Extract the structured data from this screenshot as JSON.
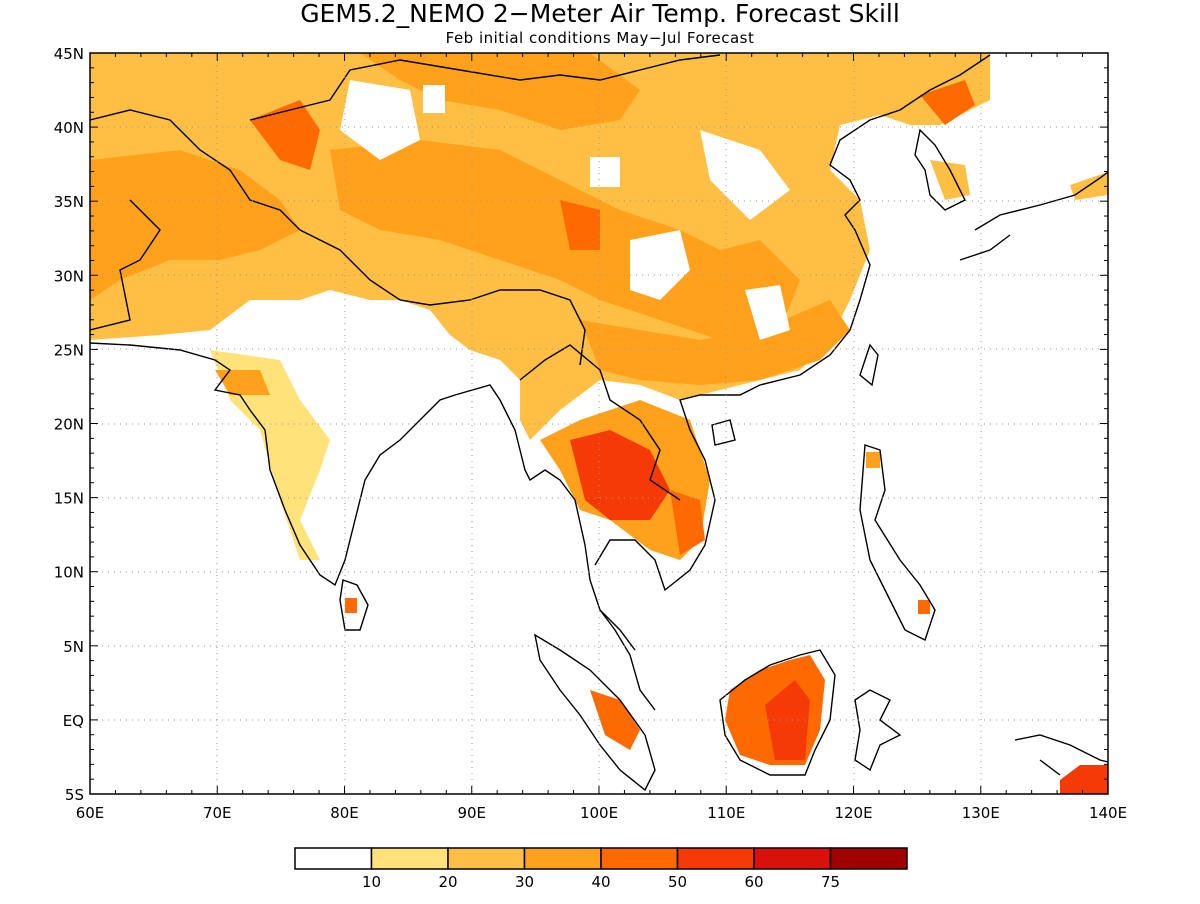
{
  "title": "GEM5.2_NEMO 2−Meter Air Temp. Forecast Skill",
  "subtitle": "Feb initial conditions  May−Jul Forecast",
  "map": {
    "lon_range": [
      60,
      140
    ],
    "lat_range": [
      -5,
      45
    ],
    "grid": true
  },
  "x_ticks": [
    {
      "value": 60,
      "label": "60E"
    },
    {
      "value": 70,
      "label": "70E"
    },
    {
      "value": 80,
      "label": "80E"
    },
    {
      "value": 90,
      "label": "90E"
    },
    {
      "value": 100,
      "label": "100E"
    },
    {
      "value": 110,
      "label": "110E"
    },
    {
      "value": 120,
      "label": "120E"
    },
    {
      "value": 130,
      "label": "130E"
    },
    {
      "value": 140,
      "label": "140E"
    }
  ],
  "y_ticks": [
    {
      "value": 45,
      "label": "45N"
    },
    {
      "value": 40,
      "label": "40N"
    },
    {
      "value": 35,
      "label": "35N"
    },
    {
      "value": 30,
      "label": "30N"
    },
    {
      "value": 25,
      "label": "25N"
    },
    {
      "value": 20,
      "label": "20N"
    },
    {
      "value": 15,
      "label": "15N"
    },
    {
      "value": 10,
      "label": "10N"
    },
    {
      "value": 5,
      "label": "5N"
    },
    {
      "value": 0,
      "label": "EQ"
    },
    {
      "value": -5,
      "label": "5S"
    }
  ],
  "colorbar": {
    "colors": [
      "#ffffff",
      "#ffe27a",
      "#ffbf45",
      "#ffa11a",
      "#ff6a00",
      "#f53a06",
      "#d8110b",
      "#a10000"
    ],
    "labels": [
      "10",
      "20",
      "30",
      "40",
      "50",
      "60",
      "75"
    ]
  },
  "chart_data": {
    "type": "heatmap",
    "title": "GEM5.2_NEMO 2−Meter Air Temp. Forecast Skill",
    "subtitle": "Feb initial conditions  May−Jul Forecast",
    "xlabel": "",
    "ylabel": "",
    "xlim": [
      60,
      140
    ],
    "ylim": [
      -5,
      45
    ],
    "levels": [
      10,
      20,
      30,
      40,
      50,
      60,
      75
    ],
    "regions": [
      {
        "lon": 97,
        "lat": 40,
        "value": 35
      },
      {
        "lon": 102,
        "lat": 34,
        "value": 30
      },
      {
        "lon": 75,
        "lat": 40,
        "value": 45
      },
      {
        "lon": 68,
        "lat": 33,
        "value": 35
      },
      {
        "lon": 103,
        "lat": 16,
        "value": 55
      },
      {
        "lon": 115,
        "lat": 1,
        "value": 55
      },
      {
        "lon": 137,
        "lat": -4.5,
        "value": 55
      }
    ]
  }
}
